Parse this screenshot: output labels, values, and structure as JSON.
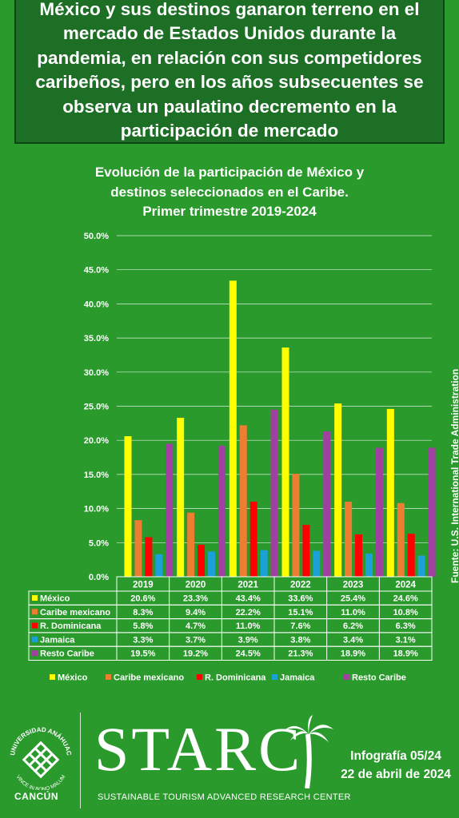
{
  "headline": "México y sus destinos ganaron terreno en el mercado de Estados Unidos durante la pandemia, en relación con sus competidores caribeños, pero en los años subsecuentes se observa un paulatino decremento en la participación de mercado",
  "chart_title_lines": [
    "Evolución de la participación de México y",
    "destinos seleccionados en el Caribe.",
    "Primer trimestre 2019-2024"
  ],
  "chart_data": {
    "type": "bar",
    "title": "Evolución de la participación de México y destinos seleccionados en el Caribe. Primer trimestre 2019-2024",
    "categories": [
      "2019",
      "2020",
      "2021",
      "2022",
      "2023",
      "2024"
    ],
    "ylim": [
      0,
      50
    ],
    "yticks": [
      "0.0%",
      "5.0%",
      "10.0%",
      "15.0%",
      "20.0%",
      "25.0%",
      "30.0%",
      "35.0%",
      "40.0%",
      "45.0%",
      "50.0%"
    ],
    "grid": true,
    "legend_position": "bottom",
    "series": [
      {
        "name": "México",
        "color": "#ffff00",
        "values": [
          20.6,
          23.3,
          43.4,
          33.6,
          25.4,
          24.6
        ],
        "labels": [
          "20.6%",
          "23.3%",
          "43.4%",
          "33.6%",
          "25.4%",
          "24.6%"
        ]
      },
      {
        "name": "Caribe mexicano",
        "color": "#ed7d31",
        "values": [
          8.3,
          9.4,
          22.2,
          15.1,
          11.0,
          10.8
        ],
        "labels": [
          "8.3%",
          "9.4%",
          "22.2%",
          "15.1%",
          "11.0%",
          "10.8%"
        ]
      },
      {
        "name": "R. Dominicana",
        "color": "#ff0000",
        "values": [
          5.8,
          4.7,
          11.0,
          7.6,
          6.2,
          6.3
        ],
        "labels": [
          "5.8%",
          "4.7%",
          "11.0%",
          "7.6%",
          "6.2%",
          "6.3%"
        ]
      },
      {
        "name": "Jamaica",
        "color": "#1ba1d8",
        "values": [
          3.3,
          3.7,
          3.9,
          3.8,
          3.4,
          3.1
        ],
        "labels": [
          "3.3%",
          "3.7%",
          "3.9%",
          "3.8%",
          "3.4%",
          "3.1%"
        ]
      },
      {
        "name": "Resto Caribe",
        "color": "#a040a0",
        "values": [
          19.5,
          19.2,
          24.5,
          21.3,
          18.9,
          18.9
        ],
        "labels": [
          "19.5%",
          "19.2%",
          "24.5%",
          "21.3%",
          "18.9%",
          "18.9%"
        ]
      }
    ]
  },
  "source": "Fuente: U.S. International Trade Administration",
  "footer": {
    "university_name": "UNIVERSIDAD ANÁHUAC",
    "university_motto": "VINCE IN BONO MALUM",
    "university_campus": "CANCÚN",
    "brand": "STARC",
    "brand_subtitle": "SUSTAINABLE TOURISM ADVANCED RESEARCH CENTER",
    "infographic_code": "Infografía 05/24",
    "date": "22 de abril de 2024"
  }
}
